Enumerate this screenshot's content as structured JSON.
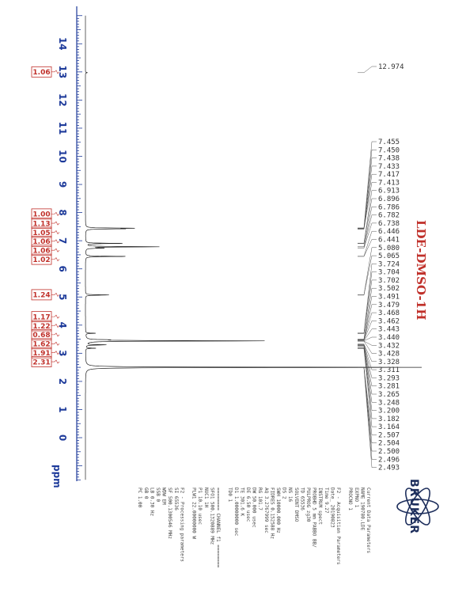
{
  "chart_data": {
    "type": "line",
    "title": "LDE-DMSO-1H",
    "xlabel": "ppm",
    "xlim": [
      15,
      -1.5
    ],
    "x_ticks": [
      "14",
      "13",
      "12",
      "11",
      "10",
      "9",
      "8",
      "7",
      "6",
      "5",
      "4",
      "3",
      "2",
      "1",
      "0"
    ],
    "integrals": [
      "1.06",
      "1.00",
      "1.13",
      "1.05",
      "1.06",
      "1.06",
      "1.02",
      "1.24",
      "1.17",
      "1.22",
      "0.68",
      "1.62",
      "1.91",
      "2.31"
    ],
    "integral_ppm": [
      13.0,
      7.95,
      7.62,
      7.3,
      6.98,
      6.66,
      6.34,
      5.08,
      4.3,
      3.98,
      3.66,
      3.34,
      3.02,
      2.7
    ],
    "peak_labels": [
      "12.974",
      "7.455",
      "7.450",
      "7.438",
      "7.433",
      "7.417",
      "7.413",
      "6.913",
      "6.896",
      "6.786",
      "6.782",
      "6.738",
      "6.446",
      "6.441",
      "5.080",
      "5.065",
      "3.724",
      "3.704",
      "3.702",
      "3.502",
      "3.491",
      "3.479",
      "3.468",
      "3.462",
      "3.443",
      "3.440",
      "3.432",
      "3.428",
      "3.328",
      "3.311",
      "3.293",
      "3.281",
      "3.265",
      "3.248",
      "3.200",
      "3.182",
      "3.164",
      "2.507",
      "2.504",
      "2.500",
      "2.496",
      "2.493"
    ],
    "peaks": [
      {
        "ppm": 12.974,
        "h": 0.006
      },
      {
        "ppm": 7.445,
        "h": 0.13
      },
      {
        "ppm": 7.425,
        "h": 0.1
      },
      {
        "ppm": 6.905,
        "h": 0.11
      },
      {
        "ppm": 6.785,
        "h": 0.22
      },
      {
        "ppm": 6.738,
        "h": 0.05
      },
      {
        "ppm": 6.443,
        "h": 0.12
      },
      {
        "ppm": 5.072,
        "h": 0.07
      },
      {
        "ppm": 3.71,
        "h": 0.03
      },
      {
        "ppm": 3.48,
        "h": 0.05
      },
      {
        "ppm": 3.44,
        "h": 0.53
      },
      {
        "ppm": 3.3,
        "h": 0.06
      },
      {
        "ppm": 3.18,
        "h": 0.03
      },
      {
        "ppm": 2.5,
        "h": 1.0
      }
    ]
  },
  "params": {
    "current_header": "Current Data Parameters",
    "current": [
      "NAME      190780.LDE",
      "EXPNO            1",
      "PROCNO           1"
    ],
    "acq_header": "F2 - Acquisition Parameters",
    "acq": [
      "Date_       20190823",
      "Time            9.27",
      "INSTRUM        spect",
      "PROBHD   5 mm PABBO BB/",
      "PULPROG          zg30",
      "TD             65536",
      "SOLVENT         DMSO",
      "NS                16",
      "DS                 2",
      "SWH       10000.000 Hz",
      "FIDRES     0.152588 Hz",
      "AQ         3.2767999 sec",
      "RG             101.7",
      "DW            50.000 usec",
      "DE              6.50 usec",
      "TE             301.6 K",
      "D1        1.00000000 sec",
      "TD0                 1"
    ],
    "chan_header": "======== CHANNEL f1 ========",
    "chan": [
      "SFO1      500.1320889 MHz",
      "NUC1               1H",
      "P1              10.10 usec",
      "PLW1      22.00000000 W"
    ],
    "proc_header": "F2 - Processing parameters",
    "proc": [
      "SI              65536",
      "SF        500.1300546 MHz",
      "WDW                 EM",
      "SSB                  0",
      "LB                0.30 Hz",
      "GB                   0",
      "PC                1.00"
    ]
  },
  "brand": {
    "name": "BRUKER"
  },
  "colors": {
    "axis": "#1d3a9a",
    "trace": "#222222",
    "integral": "#c0302a",
    "title": "#c0302a",
    "label": "#333333"
  }
}
